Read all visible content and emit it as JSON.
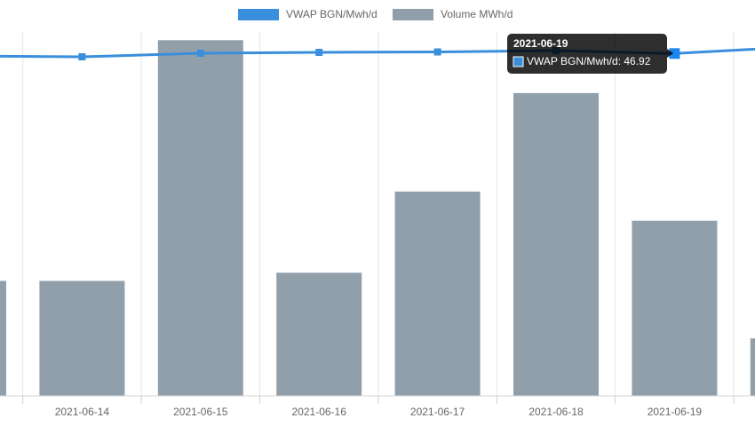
{
  "chart_data": {
    "type": "bar-line",
    "categories": [
      null,
      "2021-06-14",
      "2021-06-15",
      "2021-06-16",
      "2021-06-17",
      "2021-06-18",
      "2021-06-19",
      null
    ],
    "series": [
      {
        "name": "VWAP BGN/Mwh/d",
        "color": "#3a8fdc",
        "type": "line",
        "axis": "y2",
        "values": [
          46.59,
          46.47,
          46.96,
          47.08,
          47.14,
          47.32,
          46.92,
          47.81
        ]
      },
      {
        "name": "Volume MWh/d",
        "color": "#919fab",
        "type": "bar",
        "values": [
          12600,
          12600,
          39000,
          13500,
          22400,
          33200,
          19200,
          6300
        ]
      }
    ],
    "ylim": [
      0,
      40000
    ],
    "y2lim": [
      0,
      50
    ],
    "highlight_index": 6
  }
}
